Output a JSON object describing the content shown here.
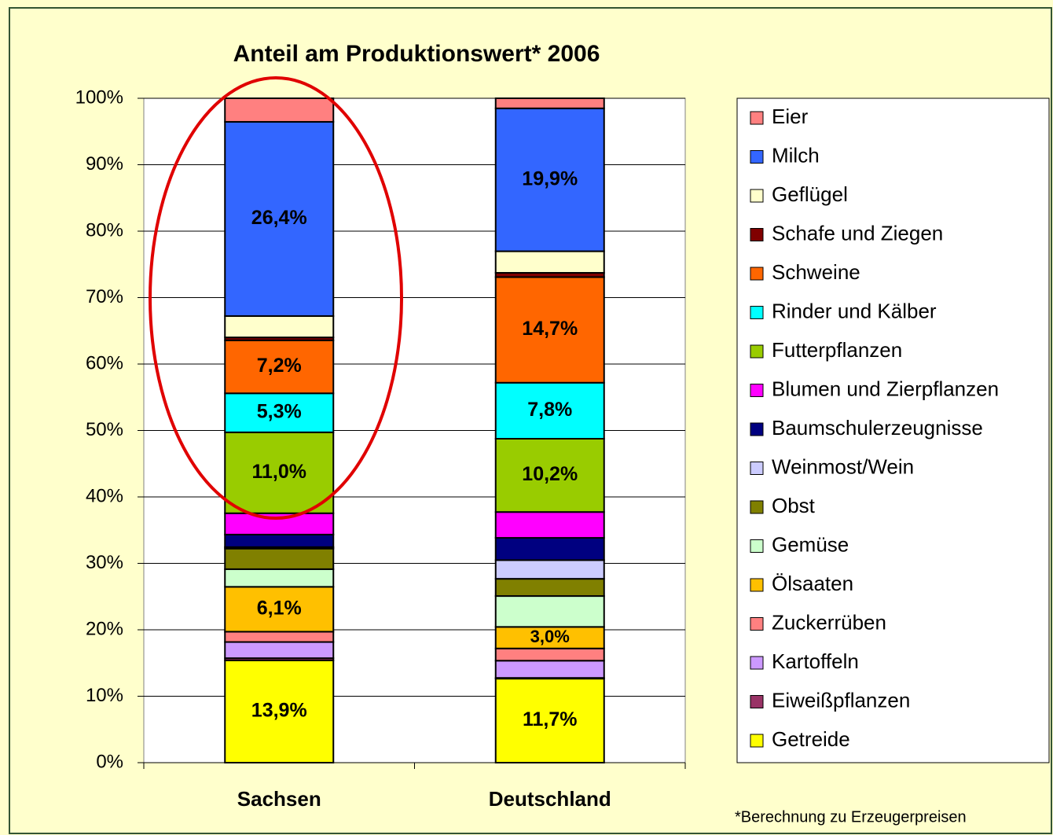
{
  "chart_data": {
    "type": "bar",
    "stacking": "percent",
    "title": "Anteil am Produktionswert* 2006",
    "footnote": "*Berechnung zu Erzeugerpreisen",
    "categories": [
      "Sachsen",
      "Deutschland"
    ],
    "ylim": [
      0,
      100
    ],
    "yticks": [
      {
        "value": 0,
        "label": "0%"
      },
      {
        "value": 10,
        "label": "10%"
      },
      {
        "value": 20,
        "label": "20%"
      },
      {
        "value": 30,
        "label": "30%"
      },
      {
        "value": 40,
        "label": "40%"
      },
      {
        "value": 50,
        "label": "50%"
      },
      {
        "value": 60,
        "label": "60%"
      },
      {
        "value": 70,
        "label": "70%"
      },
      {
        "value": 80,
        "label": "80%"
      },
      {
        "value": 90,
        "label": "90%"
      },
      {
        "value": 100,
        "label": "100%"
      }
    ],
    "grid": true,
    "legend": "right",
    "series": [
      {
        "name": "Getreide",
        "color": "#ffff00",
        "values": [
          13.9,
          11.7
        ],
        "value_labels": [
          "13,9%",
          "11,7%"
        ]
      },
      {
        "name": "Eiweißpflanzen",
        "color": "#993366",
        "values": [
          0.3,
          0.1
        ]
      },
      {
        "name": "Kartoffeln",
        "color": "#cc99ff",
        "values": [
          2.2,
          2.4
        ]
      },
      {
        "name": "Zuckerrüben",
        "color": "#ff8080",
        "values": [
          1.4,
          1.7
        ]
      },
      {
        "name": "Ölsaaten",
        "color": "#ffc000",
        "values": [
          6.1,
          3.0
        ],
        "value_labels": [
          "6,1%",
          "3,0%"
        ]
      },
      {
        "name": "Gemüse",
        "color": "#ccffcc",
        "values": [
          2.4,
          4.3
        ]
      },
      {
        "name": "Obst",
        "color": "#808000",
        "values": [
          2.8,
          2.4
        ]
      },
      {
        "name": "Weinmost/Wein",
        "color": "#ccccff",
        "values": [
          0.2,
          2.6
        ]
      },
      {
        "name": "Baumschulerzeugnisse",
        "color": "#000080",
        "values": [
          1.7,
          3.1
        ]
      },
      {
        "name": "Blumen und Zierpflanzen",
        "color": "#ff00ff",
        "values": [
          2.9,
          3.6
        ]
      },
      {
        "name": "Futterpflanzen",
        "color": "#99cc00",
        "values": [
          11.0,
          10.2
        ],
        "value_labels": [
          "11,0%",
          "10,2%"
        ]
      },
      {
        "name": "Rinder und Kälber",
        "color": "#00ffff",
        "values": [
          5.3,
          7.8
        ],
        "value_labels": [
          "5,3%",
          "7,8%"
        ]
      },
      {
        "name": "Schweine",
        "color": "#ff6600",
        "values": [
          7.2,
          14.7
        ],
        "value_labels": [
          "7,2%",
          "14,7%"
        ]
      },
      {
        "name": "Schafe und Ziegen",
        "color": "#800000",
        "values": [
          0.4,
          0.6
        ]
      },
      {
        "name": "Geflügel",
        "color": "#ffffcc",
        "values": [
          2.9,
          3.0
        ]
      },
      {
        "name": "Milch",
        "color": "#3366ff",
        "values": [
          26.4,
          19.9
        ],
        "value_labels": [
          "26,4%",
          "19,9%"
        ]
      },
      {
        "name": "Eier",
        "color": "#ff8080",
        "values": [
          3.2,
          1.4
        ]
      }
    ]
  }
}
